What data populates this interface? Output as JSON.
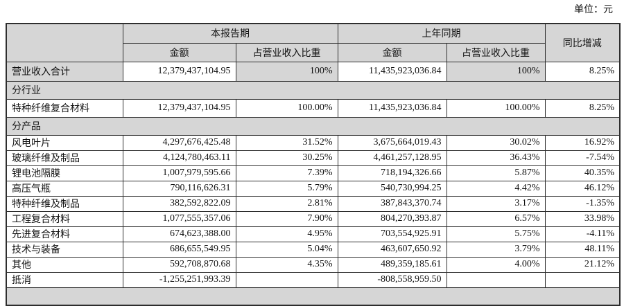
{
  "unit_label": "单位：元",
  "colors": {
    "header_bg": "#d6d6d6",
    "border": "#2e2e2e",
    "text": "#111111"
  },
  "table": {
    "header": {
      "corner": "",
      "current_period": "本报告期",
      "prior_period": "上年同期",
      "yoy": "同比增减",
      "current_amount": "金额",
      "current_ratio": "占营业收入比重",
      "prior_amount": "金额",
      "prior_ratio": "占营业收入比重"
    },
    "rows": [
      {
        "type": "data",
        "variant": "total",
        "label": "营业收入合计",
        "cur_amount": "12,379,437,104.95",
        "cur_ratio": "100%",
        "prior_amount": "11,435,923,036.84",
        "prior_ratio": "100%",
        "yoy": "8.25%"
      },
      {
        "type": "section",
        "label": "分行业"
      },
      {
        "type": "data",
        "label": "特种纤维复合材料",
        "cur_amount": "12,379,437,104.95",
        "cur_ratio": "100.00%",
        "prior_amount": "11,435,923,036.84",
        "prior_ratio": "100.00%",
        "yoy": "8.25%"
      },
      {
        "type": "section",
        "label": "分产品"
      },
      {
        "type": "data",
        "label": "风电叶片",
        "cur_amount": "4,297,676,425.48",
        "cur_ratio": "31.52%",
        "prior_amount": "3,675,664,019.43",
        "prior_ratio": "30.02%",
        "yoy": "16.92%"
      },
      {
        "type": "data",
        "label": "玻璃纤维及制品",
        "cur_amount": "4,124,780,463.11",
        "cur_ratio": "30.25%",
        "prior_amount": "4,461,257,128.95",
        "prior_ratio": "36.43%",
        "yoy": "-7.54%"
      },
      {
        "type": "data",
        "label": "锂电池隔膜",
        "cur_amount": "1,007,979,595.66",
        "cur_ratio": "7.39%",
        "prior_amount": "718,194,326.66",
        "prior_ratio": "5.87%",
        "yoy": "40.35%"
      },
      {
        "type": "data",
        "label": "高压气瓶",
        "cur_amount": "790,116,626.31",
        "cur_ratio": "5.79%",
        "prior_amount": "540,730,994.25",
        "prior_ratio": "4.42%",
        "yoy": "46.12%"
      },
      {
        "type": "data",
        "label": "特种纤维及制品",
        "cur_amount": "382,592,822.09",
        "cur_ratio": "2.81%",
        "prior_amount": "387,843,370.74",
        "prior_ratio": "3.17%",
        "yoy": "-1.35%"
      },
      {
        "type": "data",
        "label": "工程复合材料",
        "cur_amount": "1,077,555,357.06",
        "cur_ratio": "7.90%",
        "prior_amount": "804,270,393.87",
        "prior_ratio": "6.57%",
        "yoy": "33.98%"
      },
      {
        "type": "data",
        "label": "先进复合材料",
        "cur_amount": "674,623,388.00",
        "cur_ratio": "4.95%",
        "prior_amount": "703,554,925.91",
        "prior_ratio": "5.75%",
        "yoy": "-4.11%"
      },
      {
        "type": "data",
        "label": "技术与装备",
        "cur_amount": "686,655,549.95",
        "cur_ratio": "5.04%",
        "prior_amount": "463,607,650.92",
        "prior_ratio": "3.79%",
        "yoy": "48.11%"
      },
      {
        "type": "data",
        "label": "其他",
        "cur_amount": "592,708,870.68",
        "cur_ratio": "4.35%",
        "prior_amount": "489,359,185.61",
        "prior_ratio": "4.00%",
        "yoy": "21.12%"
      },
      {
        "type": "data",
        "label": "抵消",
        "cur_amount": "-1,255,251,993.39",
        "cur_ratio": "",
        "prior_amount": "-808,558,959.50",
        "prior_ratio": "",
        "yoy": ""
      },
      {
        "type": "section",
        "label": ""
      }
    ]
  }
}
